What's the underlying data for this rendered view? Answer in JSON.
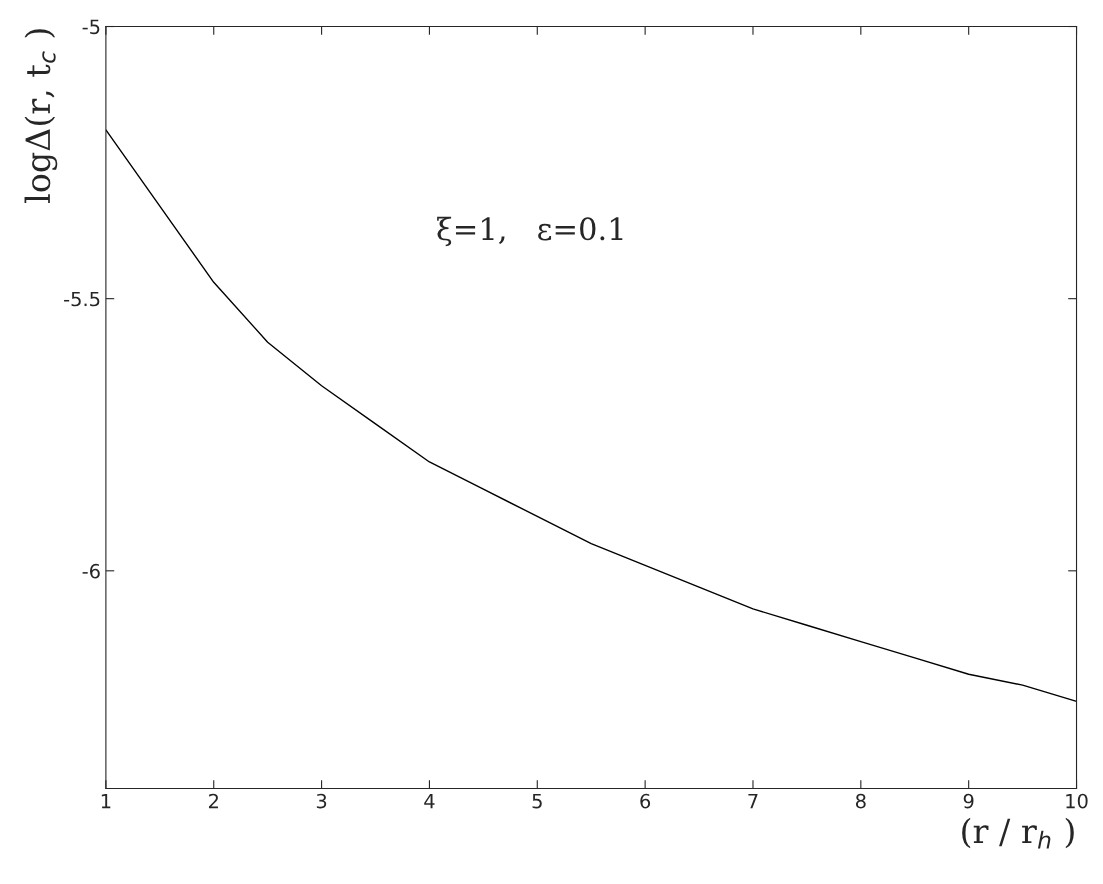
{
  "chart_data": {
    "type": "line",
    "x": [
      1,
      1.5,
      2,
      2.5,
      3,
      3.5,
      4,
      4.5,
      5,
      5.5,
      6,
      6.5,
      7,
      7.5,
      8,
      8.5,
      9,
      9.5,
      10
    ],
    "series": [
      {
        "color": "#000000",
        "values": [
          -5.19,
          -5.33,
          -5.47,
          -5.58,
          -5.66,
          -5.73,
          -5.8,
          -5.85,
          -5.9,
          -5.95,
          -5.99,
          -6.03,
          -6.07,
          -6.1,
          -6.13,
          -6.16,
          -6.19,
          -6.21,
          -6.24
        ]
      }
    ],
    "xlabel": "(r / r$_{h}$ )",
    "ylabel": "logΔ(r, t$_{c}$ )",
    "annotations": [
      "ξ=1,   ε=0.1"
    ],
    "xlim": [
      1,
      10
    ],
    "ylim": [
      -6.4,
      -5
    ],
    "xticks": [
      1,
      2,
      3,
      4,
      5,
      6,
      7,
      8,
      9,
      10
    ],
    "yticks": [
      -5,
      -5.5,
      -6
    ],
    "grid": false,
    "legend": false
  }
}
